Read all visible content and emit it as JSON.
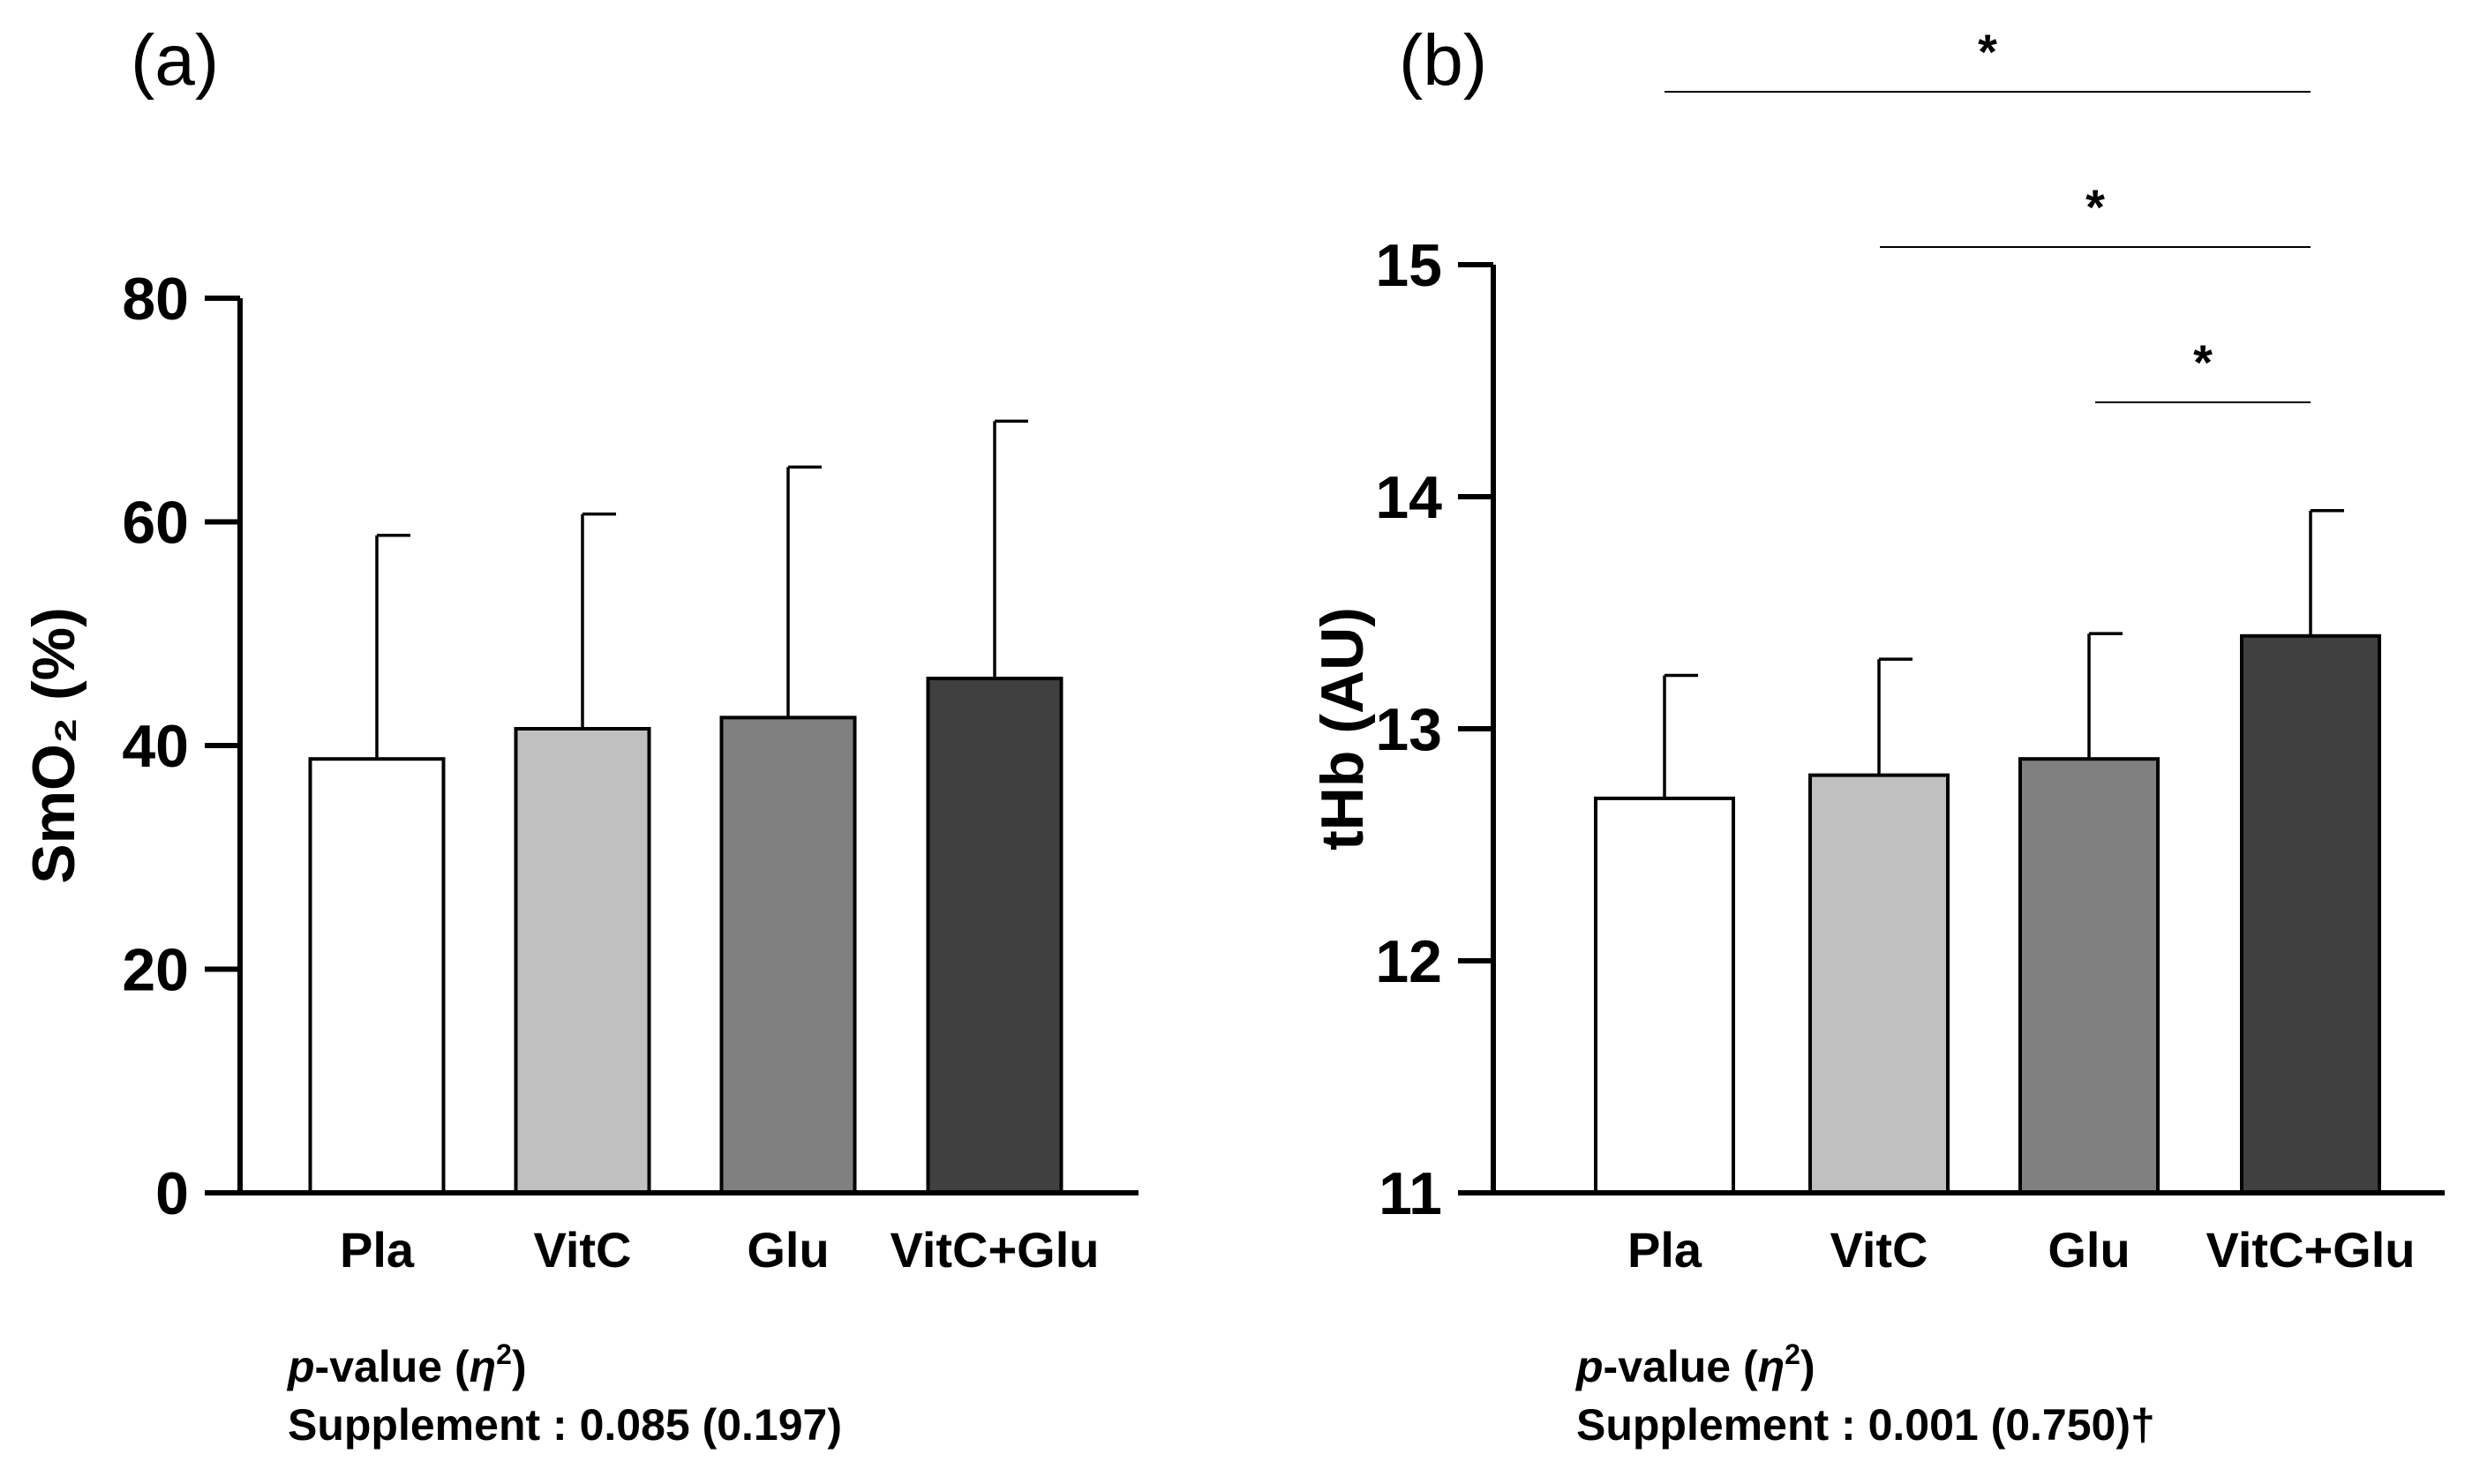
{
  "chart_data": [
    {
      "type": "bar",
      "panel_label": "(a)",
      "categories": [
        "Pla",
        "VitC",
        "Glu",
        "VitC+Glu"
      ],
      "values": [
        38.8,
        41.5,
        42.5,
        46.0
      ],
      "errors": [
        20.0,
        19.2,
        22.4,
        23.0
      ],
      "bar_colors": [
        "#ffffff",
        "#c0c0c0",
        "#808080",
        "#404040"
      ],
      "ylabel": "SmO₂ (%)",
      "ylim": [
        0,
        80
      ],
      "yticks": [
        "0",
        "20",
        "40",
        "60",
        "80"
      ],
      "xlabel": "",
      "stats": {
        "p_label": "p",
        "p_rest": "-value (",
        "eta": "η",
        "eta_sup": "2",
        "close": ")",
        "text": "Supplement : 0.085 (0.197)"
      },
      "significance": []
    },
    {
      "type": "bar",
      "panel_label": "(b)",
      "categories": [
        "Pla",
        "VitC",
        "Glu",
        "VitC+Glu"
      ],
      "values": [
        12.7,
        12.8,
        12.87,
        13.4
      ],
      "errors": [
        0.53,
        0.5,
        0.54,
        0.54
      ],
      "bar_colors": [
        "#ffffff",
        "#c0c0c0",
        "#808080",
        "#404040"
      ],
      "ylabel": "tHb (AU)",
      "ylim": [
        11,
        15
      ],
      "yticks": [
        "11",
        "12",
        "13",
        "14",
        "15"
      ],
      "xlabel": "",
      "stats": {
        "p_label": "p",
        "p_rest": "-value (",
        "eta": "η",
        "eta_sup": "2",
        "close": ")",
        "text": "Supplement : 0.001 (0.750)†"
      },
      "significance": [
        {
          "from": "Pla",
          "to": "VitC+Glu",
          "label": "*"
        },
        {
          "from": "VitC",
          "to": "VitC+Glu",
          "label": "*"
        },
        {
          "from": "Glu",
          "to": "VitC+Glu",
          "label": "*"
        }
      ]
    }
  ]
}
